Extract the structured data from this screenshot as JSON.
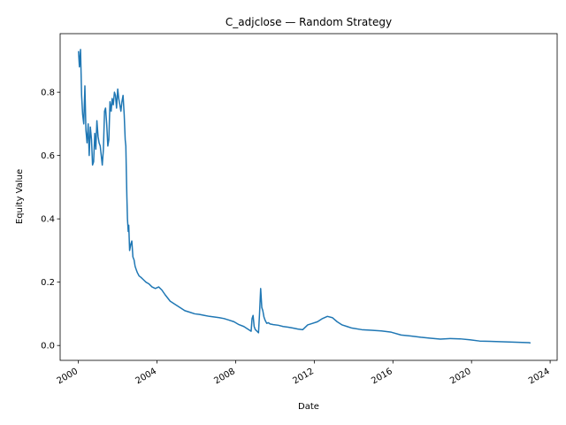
{
  "chart_data": {
    "type": "line",
    "title": "C_adjclose — Random Strategy",
    "xlabel": "Date",
    "ylabel": "Equity Value",
    "xlim": [
      "1999-01-27",
      "2024-05-10"
    ],
    "ylim": [
      -0.047,
      0.985
    ],
    "x_ticks": [
      "2000",
      "2004",
      "2008",
      "2012",
      "2016",
      "2020",
      "2024"
    ],
    "y_ticks": [
      "0.0",
      "0.2",
      "0.4",
      "0.6",
      "0.8"
    ],
    "grid": false,
    "line_color": "#1f77b4",
    "series": [
      {
        "name": "",
        "x": [
          "2000-01-03",
          "2000-01-20",
          "2000-02-10",
          "2000-03-01",
          "2000-03-20",
          "2000-04-10",
          "2000-05-01",
          "2000-05-20",
          "2000-06-10",
          "2000-07-01",
          "2000-07-20",
          "2000-08-10",
          "2000-09-01",
          "2000-09-20",
          "2000-10-10",
          "2000-11-01",
          "2000-11-20",
          "2000-12-10",
          "2001-01-01",
          "2001-01-20",
          "2001-02-10",
          "2001-03-01",
          "2001-03-20",
          "2001-04-10",
          "2001-05-01",
          "2001-05-20",
          "2001-06-10",
          "2001-07-01",
          "2001-07-20",
          "2001-08-10",
          "2001-09-01",
          "2001-09-20",
          "2001-10-10",
          "2001-11-01",
          "2001-11-20",
          "2001-12-10",
          "2002-01-01",
          "2002-01-20",
          "2002-02-10",
          "2002-03-01",
          "2002-03-20",
          "2002-04-10",
          "2002-05-01",
          "2002-05-20",
          "2002-06-01",
          "2002-06-10",
          "2002-06-20",
          "2002-07-01",
          "2002-07-15",
          "2002-07-25",
          "2002-08-10",
          "2002-09-01",
          "2002-09-20",
          "2002-10-10",
          "2002-11-01",
          "2002-11-20",
          "2002-12-10",
          "2003-01-01",
          "2003-02-01",
          "2003-03-10",
          "2003-04-10",
          "2003-05-10",
          "2003-06-10",
          "2003-08-01",
          "2003-10-01",
          "2003-12-01",
          "2004-02-01",
          "2004-04-01",
          "2004-06-01",
          "2004-09-01",
          "2004-12-01",
          "2005-03-01",
          "2005-06-01",
          "2005-09-01",
          "2005-12-01",
          "2006-03-01",
          "2006-06-01",
          "2006-09-01",
          "2006-12-01",
          "2007-03-01",
          "2007-06-01",
          "2007-09-01",
          "2007-12-01",
          "2008-03-01",
          "2008-06-01",
          "2008-09-01",
          "2008-10-15",
          "2008-11-01",
          "2008-11-20",
          "2008-12-10",
          "2009-01-01",
          "2009-02-01",
          "2009-03-01",
          "2009-03-20",
          "2009-04-10",
          "2009-05-01",
          "2009-05-20",
          "2009-06-10",
          "2009-07-01",
          "2009-08-01",
          "2009-09-01",
          "2009-10-01",
          "2009-12-01",
          "2010-03-01",
          "2010-06-01",
          "2010-09-01",
          "2010-12-01",
          "2011-03-01",
          "2011-06-01",
          "2011-09-01",
          "2011-12-01",
          "2012-03-01",
          "2012-06-01",
          "2012-09-01",
          "2012-12-01",
          "2013-03-01",
          "2013-06-01",
          "2013-09-01",
          "2013-12-01",
          "2014-06-01",
          "2014-12-01",
          "2015-06-01",
          "2015-12-01",
          "2016-06-01",
          "2016-12-01",
          "2017-06-01",
          "2017-12-01",
          "2018-06-01",
          "2018-12-01",
          "2019-06-01",
          "2019-12-01",
          "2020-06-01",
          "2020-12-01",
          "2021-06-01",
          "2021-12-01",
          "2022-06-01",
          "2022-12-01",
          "2023-01-01"
        ],
        "y": [
          0.93,
          0.88,
          0.935,
          0.79,
          0.73,
          0.7,
          0.82,
          0.68,
          0.64,
          0.7,
          0.6,
          0.69,
          0.65,
          0.57,
          0.58,
          0.67,
          0.62,
          0.71,
          0.66,
          0.64,
          0.63,
          0.6,
          0.57,
          0.62,
          0.74,
          0.75,
          0.7,
          0.63,
          0.65,
          0.77,
          0.74,
          0.78,
          0.76,
          0.8,
          0.79,
          0.75,
          0.81,
          0.78,
          0.76,
          0.74,
          0.77,
          0.79,
          0.73,
          0.65,
          0.63,
          0.55,
          0.47,
          0.4,
          0.36,
          0.38,
          0.3,
          0.32,
          0.33,
          0.28,
          0.27,
          0.25,
          0.24,
          0.23,
          0.22,
          0.215,
          0.21,
          0.205,
          0.2,
          0.195,
          0.185,
          0.18,
          0.185,
          0.175,
          0.16,
          0.14,
          0.13,
          0.12,
          0.11,
          0.105,
          0.1,
          0.098,
          0.095,
          0.092,
          0.09,
          0.088,
          0.085,
          0.08,
          0.075,
          0.066,
          0.06,
          0.05,
          0.045,
          0.085,
          0.095,
          0.06,
          0.05,
          0.045,
          0.04,
          0.1,
          0.18,
          0.12,
          0.11,
          0.09,
          0.08,
          0.07,
          0.072,
          0.068,
          0.066,
          0.064,
          0.06,
          0.058,
          0.055,
          0.052,
          0.05,
          0.065,
          0.07,
          0.075,
          0.085,
          0.092,
          0.088,
          0.075,
          0.065,
          0.06,
          0.055,
          0.05,
          0.048,
          0.046,
          0.042,
          0.033,
          0.03,
          0.026,
          0.023,
          0.02,
          0.022,
          0.021,
          0.018,
          0.014,
          0.013,
          0.012,
          0.011,
          0.01,
          0.009,
          0.008
        ]
      }
    ]
  }
}
